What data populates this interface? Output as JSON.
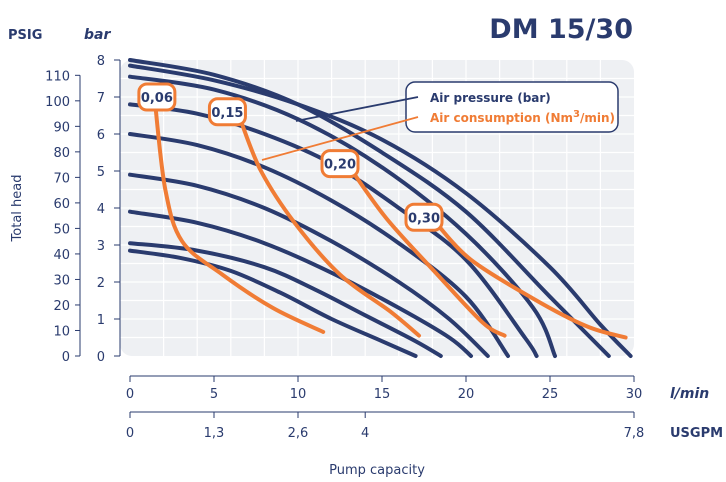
{
  "colors": {
    "pressure": "#2a3b6e",
    "consumption": "#f07c35",
    "plot_bg": "#eef0f3",
    "grid": "#ffffff"
  },
  "chart_data": {
    "type": "line",
    "title": "DM 15/30",
    "y_units": {
      "psig": "PSIG",
      "bar": "bar"
    },
    "ylabel": "Total head",
    "xlabel": "Pump capacity",
    "x_units": {
      "lmin": "l/min",
      "usgpm": "USGPM"
    },
    "xlim": [
      0,
      30
    ],
    "ylim_bar": [
      0,
      8
    ],
    "x_ticks_lmin": [
      "0",
      "5",
      "10",
      "15",
      "20",
      "25",
      "30"
    ],
    "x_ticks_usgpm": [
      {
        "label": "0",
        "at_lmin": 0
      },
      {
        "label": "1,3",
        "at_lmin": 5
      },
      {
        "label": "2,6",
        "at_lmin": 10
      },
      {
        "label": "4",
        "at_lmin": 14
      },
      {
        "label": "7,8",
        "at_lmin": 30
      }
    ],
    "y_ticks_bar": [
      "0",
      "1",
      "2",
      "3",
      "4",
      "5",
      "6",
      "7",
      "8"
    ],
    "y_ticks_psig": [
      "0",
      "10",
      "20",
      "30",
      "40",
      "50",
      "60",
      "70",
      "80",
      "90",
      "100",
      "110"
    ],
    "legend": {
      "pressure": "Air pressure (bar)",
      "consumption_pre": "Air consumption (Nm",
      "consumption_sup": "3",
      "consumption_post": "/min)"
    },
    "pressure_curves": [
      {
        "points": [
          [
            0,
            2.85
          ],
          [
            3,
            2.65
          ],
          [
            6,
            2.3
          ],
          [
            9,
            1.7
          ],
          [
            12,
            1.0
          ],
          [
            15,
            0.4
          ],
          [
            17,
            0
          ]
        ]
      },
      {
        "points": [
          [
            0,
            3.05
          ],
          [
            4,
            2.85
          ],
          [
            8,
            2.4
          ],
          [
            11,
            1.8
          ],
          [
            14,
            1.1
          ],
          [
            17,
            0.4
          ],
          [
            18.5,
            0
          ]
        ]
      },
      {
        "points": [
          [
            0,
            3.9
          ],
          [
            4,
            3.6
          ],
          [
            8,
            3.05
          ],
          [
            12,
            2.25
          ],
          [
            16,
            1.3
          ],
          [
            19,
            0.5
          ],
          [
            20.3,
            0
          ]
        ]
      },
      {
        "points": [
          [
            0,
            4.9
          ],
          [
            4,
            4.6
          ],
          [
            8,
            4.0
          ],
          [
            12,
            3.1
          ],
          [
            16,
            2.0
          ],
          [
            19,
            1.0
          ],
          [
            21.3,
            0
          ]
        ]
      },
      {
        "points": [
          [
            0,
            6.0
          ],
          [
            4,
            5.7
          ],
          [
            8,
            5.1
          ],
          [
            12,
            4.2
          ],
          [
            16,
            3.05
          ],
          [
            20,
            1.6
          ],
          [
            22.5,
            0
          ]
        ]
      },
      {
        "points": [
          [
            0,
            6.8
          ],
          [
            4,
            6.55
          ],
          [
            8,
            6.0
          ],
          [
            12,
            5.2
          ],
          [
            16,
            4.0
          ],
          [
            20,
            2.6
          ],
          [
            23.5,
            0.5
          ],
          [
            24.2,
            0
          ]
        ]
      },
      {
        "points": [
          [
            0,
            7.55
          ],
          [
            5,
            7.2
          ],
          [
            10,
            6.4
          ],
          [
            15,
            5.1
          ],
          [
            20,
            3.3
          ],
          [
            24,
            1.3
          ],
          [
            25.3,
            0
          ]
        ]
      },
      {
        "points": [
          [
            0,
            8.0
          ],
          [
            5,
            7.6
          ],
          [
            10,
            6.8
          ],
          [
            15,
            5.5
          ],
          [
            20,
            3.9
          ],
          [
            25,
            1.6
          ],
          [
            28.5,
            0
          ]
        ]
      },
      {
        "points": [
          [
            0,
            7.85
          ],
          [
            5,
            7.45
          ],
          [
            10,
            6.8
          ],
          [
            15,
            5.85
          ],
          [
            20,
            4.4
          ],
          [
            25,
            2.4
          ],
          [
            28,
            0.85
          ],
          [
            29.8,
            0
          ]
        ]
      }
    ],
    "consumption_curves": [
      {
        "label": "0,06",
        "label_at": [
          1.6,
          7.0
        ],
        "points": [
          [
            1.5,
            6.8
          ],
          [
            2.1,
            4.5
          ],
          [
            3.1,
            3.1
          ],
          [
            5.5,
            2.2
          ],
          [
            8.5,
            1.3
          ],
          [
            11.5,
            0.65
          ]
        ]
      },
      {
        "label": "0,15",
        "label_at": [
          5.8,
          6.6
        ],
        "points": [
          [
            6.6,
            6.35
          ],
          [
            7.8,
            5.0
          ],
          [
            9.8,
            3.6
          ],
          [
            12.5,
            2.2
          ],
          [
            15.5,
            1.2
          ],
          [
            17.2,
            0.55
          ]
        ]
      },
      {
        "label": "0,20",
        "label_at": [
          12.5,
          5.2
        ],
        "points": [
          [
            13.3,
            4.95
          ],
          [
            15.3,
            3.7
          ],
          [
            18.3,
            2.2
          ],
          [
            21.0,
            0.9
          ],
          [
            22.3,
            0.55
          ]
        ]
      },
      {
        "label": "0,30",
        "label_at": [
          17.5,
          3.75
        ],
        "points": [
          [
            18.3,
            3.55
          ],
          [
            20.3,
            2.6
          ],
          [
            24.0,
            1.55
          ],
          [
            27.2,
            0.8
          ],
          [
            29.5,
            0.5
          ]
        ]
      }
    ]
  }
}
